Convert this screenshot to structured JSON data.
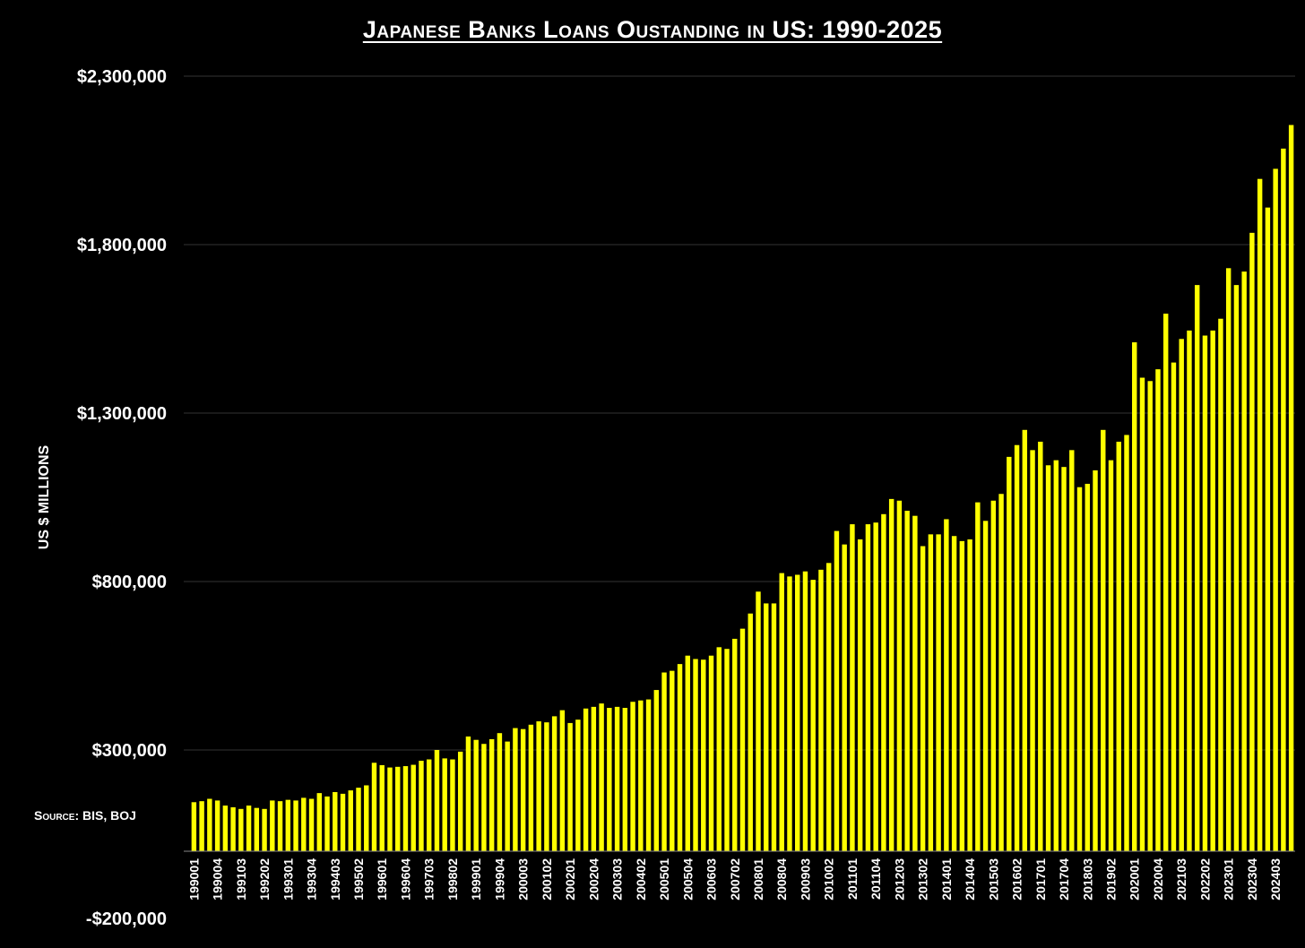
{
  "chart_data": {
    "type": "bar",
    "title": "Japanese Banks Loans Oustanding in US: 1990-2025",
    "ylabel": "US $ MILLIONS",
    "xlabel": "",
    "source": "Source: BIS, BOJ",
    "ylim": [
      -200000,
      2300000
    ],
    "yticks": [
      -200000,
      300000,
      800000,
      1300000,
      1800000,
      2300000
    ],
    "ytick_labels": [
      "-$200,000",
      "$300,000",
      "$800,000",
      "$1,300,000",
      "$1,800,000",
      "$2,300,000"
    ],
    "xtick_labels": [
      "199001",
      "199004",
      "199103",
      "199202",
      "199301",
      "199304",
      "199403",
      "199502",
      "199601",
      "199604",
      "199703",
      "199802",
      "199901",
      "199904",
      "200003",
      "200102",
      "200201",
      "200204",
      "200303",
      "200402",
      "200501",
      "200504",
      "200603",
      "200702",
      "200801",
      "200804",
      "200903",
      "201002",
      "201101",
      "201104",
      "201203",
      "201302",
      "201401",
      "201404",
      "201503",
      "201602",
      "201701",
      "201704",
      "201803",
      "201902",
      "202001",
      "202004",
      "202103",
      "202202",
      "202301",
      "202304",
      "202403"
    ],
    "first_period": "199001",
    "grid": true,
    "bar_color": "#FFFF00",
    "values": [
      145000,
      148000,
      155000,
      150000,
      135000,
      130000,
      125000,
      135000,
      128000,
      125000,
      150000,
      148000,
      152000,
      150000,
      158000,
      155000,
      172000,
      162000,
      175000,
      170000,
      180000,
      188000,
      195000,
      262000,
      255000,
      248000,
      250000,
      252000,
      256000,
      268000,
      272000,
      300000,
      275000,
      272000,
      295000,
      340000,
      330000,
      318000,
      332000,
      350000,
      325000,
      365000,
      362000,
      375000,
      385000,
      382000,
      400000,
      418000,
      380000,
      390000,
      423000,
      428000,
      438000,
      425000,
      428000,
      425000,
      443000,
      447000,
      450000,
      478000,
      530000,
      535000,
      555000,
      580000,
      570000,
      568000,
      580000,
      605000,
      600000,
      630000,
      660000,
      705000,
      770000,
      735000,
      735000,
      825000,
      815000,
      820000,
      830000,
      805000,
      835000,
      855000,
      950000,
      910000,
      970000,
      925000,
      970000,
      975000,
      1000000,
      1045000,
      1040000,
      1010000,
      995000,
      905000,
      940000,
      940000,
      985000,
      935000,
      920000,
      925000,
      1035000,
      980000,
      1040000,
      1060000,
      1170000,
      1205000,
      1250000,
      1190000,
      1215000,
      1145000,
      1160000,
      1140000,
      1190000,
      1080000,
      1090000,
      1130000,
      1250000,
      1160000,
      1215000,
      1235000,
      1510000,
      1405000,
      1395000,
      1430000,
      1595000,
      1450000,
      1520000,
      1545000,
      1680000,
      1530000,
      1545000,
      1580000,
      1730000,
      1680000,
      1720000,
      1835000,
      1995000,
      1910000,
      2025000,
      2085000,
      2155000
    ]
  }
}
